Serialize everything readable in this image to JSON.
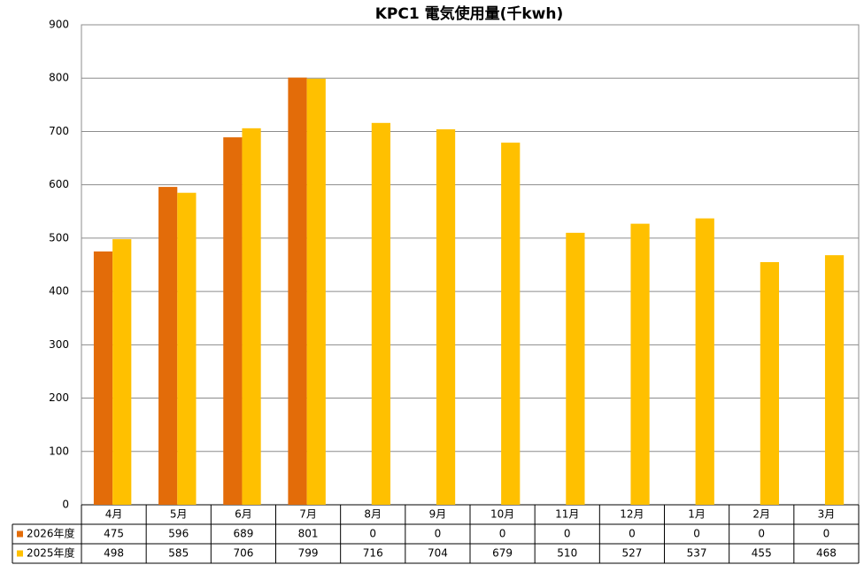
{
  "chart_data": {
    "type": "bar",
    "title": "KPC1 電気使用量(千kwh)",
    "categories": [
      "4月",
      "5月",
      "6月",
      "7月",
      "8月",
      "9月",
      "10月",
      "11月",
      "12月",
      "1月",
      "2月",
      "3月"
    ],
    "series": [
      {
        "name": "2026年度",
        "color": "#e36c09",
        "values": [
          475,
          596,
          689,
          801,
          0,
          0,
          0,
          0,
          0,
          0,
          0,
          0
        ]
      },
      {
        "name": "2025年度",
        "color": "#ffc000",
        "values": [
          498,
          585,
          706,
          799,
          716,
          704,
          679,
          510,
          527,
          537,
          455,
          468
        ]
      }
    ],
    "ylim": [
      0,
      900
    ],
    "yticks": [
      0,
      100,
      200,
      300,
      400,
      500,
      600,
      700,
      800,
      900
    ],
    "grid": true
  }
}
